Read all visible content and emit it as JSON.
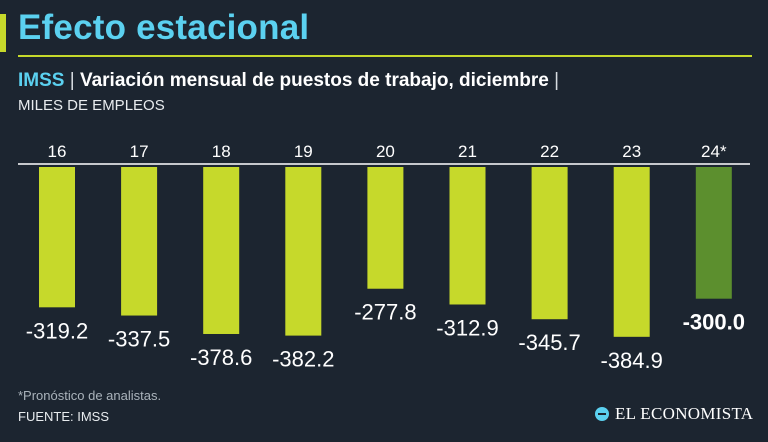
{
  "title": "Efecto estacional",
  "subtitle": {
    "source_name": "IMSS",
    "separator": "|",
    "text": "Variación mensual de puestos de trabajo, diciembre",
    "units": "MILES DE EMPLEOS"
  },
  "footnote": "*Pronóstico de analistas.",
  "source": "FUENTE: IMSS",
  "logo": "EL ECONOMISTA",
  "colors": {
    "background": "#1c2530",
    "title": "#5bd1f0",
    "accent": "#c6d92b",
    "bar_actual": "#c6d92b",
    "bar_forecast": "#5c8f2e"
  },
  "chart_data": {
    "type": "bar",
    "categories": [
      "16",
      "17",
      "18",
      "19",
      "20",
      "21",
      "22",
      "23",
      "24*"
    ],
    "values": [
      -319.2,
      -337.5,
      -378.6,
      -382.2,
      -277.8,
      -312.9,
      -345.7,
      -384.9,
      -300.0
    ],
    "labels": [
      "-319.2",
      "-337.5",
      "-378.6",
      "-382.2",
      "-277.8",
      "-312.9",
      "-345.7",
      "-384.9",
      "-300.0"
    ],
    "forecast": [
      false,
      false,
      false,
      false,
      false,
      false,
      false,
      false,
      true
    ],
    "title": "Variación mensual de puestos de trabajo, diciembre",
    "xlabel": "",
    "ylabel": "MILES DE EMPLEOS",
    "ylim": [
      -400,
      0
    ]
  }
}
